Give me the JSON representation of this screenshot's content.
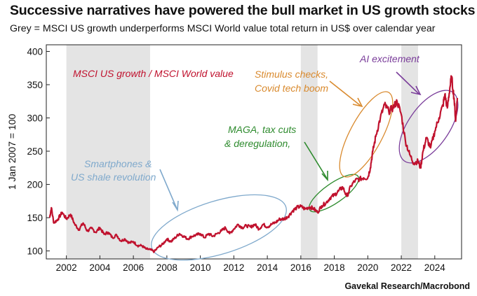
{
  "title": "Successive narratives have powered the bull market in US growth stocks",
  "subtitle": "Grey = MSCI US growth underperforms MSCI World value total return in US$ over calendar year",
  "source": "Gavekal Research/Macrobond",
  "colors": {
    "line": "#c0122e",
    "grey_band": "#e4e4e4",
    "ellipse_2009": "#7fa9cc",
    "ellipse_2018": "#2e8b2e",
    "ellipse_2020": "#d98a2e",
    "ellipse_2024": "#7a3d9a"
  },
  "annotations": {
    "series_label": "MSCI US growth / MSCI World value",
    "smartphones": [
      "Smartphones &",
      "US shale revolution"
    ],
    "maga": [
      "MAGA, tax cuts",
      "& deregulation,"
    ],
    "stimulus": [
      "Stimulus checks,",
      "Covid tech boom"
    ],
    "ai": "AI excitement"
  },
  "chart_data": {
    "type": "line",
    "title": "Successive narratives have powered the bull market in US growth stocks",
    "subtitle": "Grey = MSCI US growth underperforms MSCI World value total return in US$ over calendar year",
    "xlabel": "",
    "ylabel": "1 Jan 2007 = 100",
    "xlim": [
      2000.8,
      2025.6
    ],
    "ylim": [
      88,
      410
    ],
    "xticks": [
      "2002",
      "2004",
      "2006",
      "2008",
      "2010",
      "2012",
      "2014",
      "2016",
      "2018",
      "2020",
      "2022",
      "2024"
    ],
    "yticks": [
      "100",
      "150",
      "200",
      "250",
      "300",
      "350",
      "400"
    ],
    "grid": false,
    "grey_periods": [
      [
        2002,
        2007
      ],
      [
        2016,
        2017
      ],
      [
        2022,
        2023
      ]
    ],
    "series": [
      {
        "name": "MSCI US growth / MSCI World value",
        "x": [
          2001.0,
          2001.1,
          2001.25,
          2001.5,
          2001.75,
          2002.0,
          2002.25,
          2002.5,
          2002.75,
          2003.0,
          2003.25,
          2003.5,
          2003.75,
          2004.0,
          2004.25,
          2004.5,
          2004.75,
          2005.0,
          2005.25,
          2005.5,
          2005.75,
          2006.0,
          2006.25,
          2006.5,
          2006.75,
          2007.0,
          2007.25,
          2007.5,
          2007.75,
          2008.0,
          2008.25,
          2008.5,
          2008.75,
          2009.0,
          2009.25,
          2009.5,
          2009.75,
          2010.0,
          2010.25,
          2010.5,
          2010.75,
          2011.0,
          2011.25,
          2011.5,
          2011.75,
          2012.0,
          2012.25,
          2012.5,
          2012.75,
          2013.0,
          2013.25,
          2013.5,
          2013.75,
          2014.0,
          2014.25,
          2014.5,
          2014.75,
          2015.0,
          2015.25,
          2015.5,
          2015.75,
          2016.0,
          2016.25,
          2016.5,
          2016.75,
          2017.0,
          2017.25,
          2017.5,
          2017.75,
          2018.0,
          2018.25,
          2018.5,
          2018.75,
          2019.0,
          2019.25,
          2019.5,
          2019.75,
          2020.0,
          2020.15,
          2020.3,
          2020.5,
          2020.75,
          2021.0,
          2021.25,
          2021.5,
          2021.75,
          2022.0,
          2022.25,
          2022.5,
          2022.75,
          2023.0,
          2023.15,
          2023.3,
          2023.5,
          2023.75,
          2024.0,
          2024.25,
          2024.5,
          2024.6,
          2024.75,
          2024.9,
          2025.0,
          2025.15,
          2025.25,
          2025.35
        ],
        "values": [
          150,
          165,
          142,
          148,
          158,
          148,
          155,
          140,
          132,
          142,
          130,
          134,
          128,
          135,
          125,
          128,
          120,
          124,
          115,
          118,
          112,
          114,
          108,
          108,
          103,
          102,
          99,
          106,
          110,
          118,
          114,
          120,
          126,
          122,
          118,
          122,
          124,
          126,
          120,
          126,
          122,
          126,
          130,
          135,
          126,
          133,
          140,
          135,
          138,
          136,
          140,
          133,
          140,
          136,
          140,
          143,
          148,
          148,
          152,
          160,
          165,
          167,
          163,
          166,
          164,
          158,
          168,
          172,
          180,
          184,
          190,
          196,
          182,
          198,
          206,
          208,
          210,
          210,
          225,
          250,
          275,
          300,
          320,
          310,
          315,
          325,
          305,
          265,
          245,
          232,
          235,
          225,
          250,
          270,
          255,
          280,
          300,
          320,
          335,
          315,
          345,
          362,
          330,
          295,
          330
        ]
      }
    ]
  }
}
